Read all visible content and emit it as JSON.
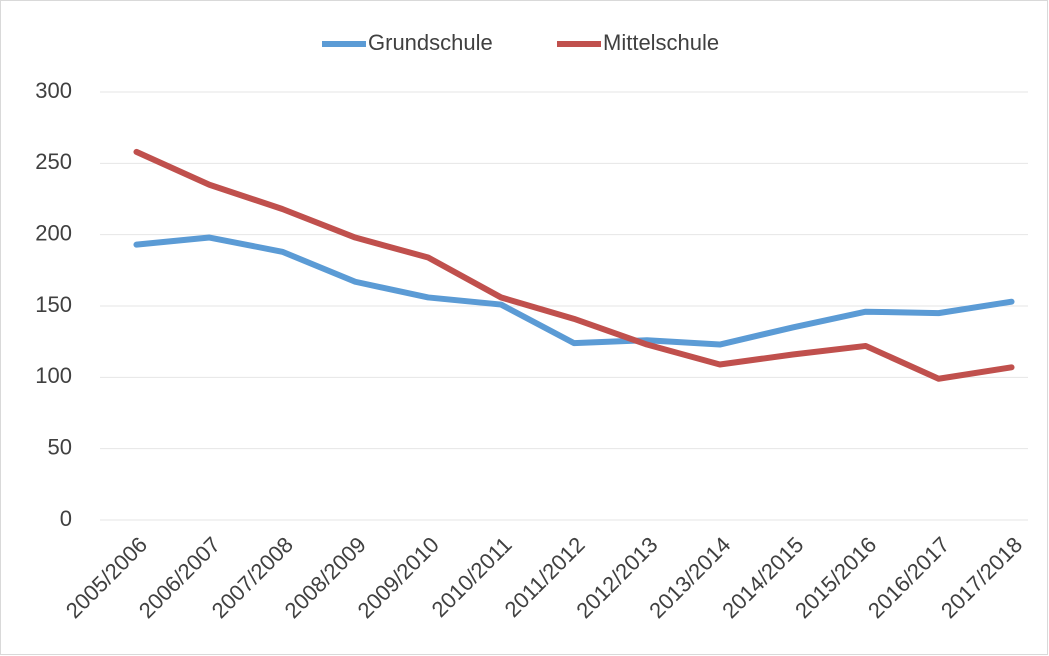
{
  "chart_data": {
    "type": "line",
    "categories": [
      "2005/2006",
      "2006/2007",
      "2007/2008",
      "2008/2009",
      "2009/2010",
      "2010/2011",
      "2011/2012",
      "2012/2013",
      "2013/2014",
      "2014/2015",
      "2015/2016",
      "2016/2017",
      "2017/2018"
    ],
    "series": [
      {
        "name": "Grundschule",
        "color": "#5b9bd5",
        "values": [
          193,
          198,
          188,
          167,
          156,
          151,
          124,
          126,
          123,
          135,
          146,
          145,
          153
        ]
      },
      {
        "name": "Mittelschule",
        "color": "#c0504d",
        "values": [
          258,
          235,
          218,
          198,
          184,
          156,
          141,
          123,
          109,
          116,
          122,
          99,
          107
        ]
      }
    ],
    "ylim": [
      0,
      300
    ],
    "yticks": [
      0,
      50,
      100,
      150,
      200,
      250,
      300
    ],
    "grid": true,
    "legend": "top"
  }
}
